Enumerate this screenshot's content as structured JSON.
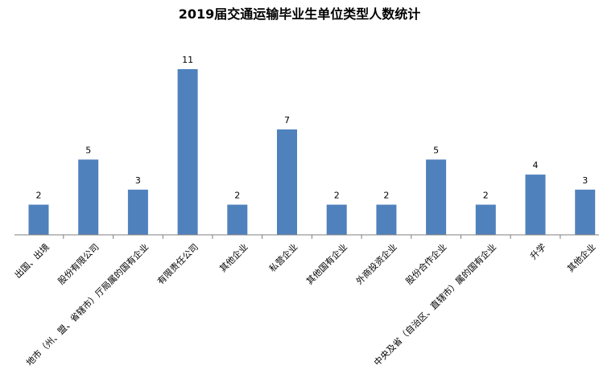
{
  "chart_data": {
    "type": "bar",
    "title": "2019届交通运输毕业生单位类型人数统计",
    "xlabel": "",
    "ylabel": "",
    "categories": [
      "出国、出境",
      "股份有限公司",
      "地市（州、盟、省辖市）厅局属的国有企业",
      "有限责任公司",
      "其他企业",
      "私营企业",
      "其他国有企业",
      "外商投资企业",
      "股份合作企业",
      "中央及省（自治区、直辖市）属的国有企业",
      "升学",
      "其他企业"
    ],
    "values": [
      2,
      5,
      3,
      11,
      2,
      7,
      2,
      2,
      5,
      2,
      4,
      3
    ],
    "ylim": [
      0,
      11
    ],
    "grid": false,
    "legend": "none",
    "bar_color": "#4F81BD",
    "axis_color": "#7F7F7F"
  }
}
